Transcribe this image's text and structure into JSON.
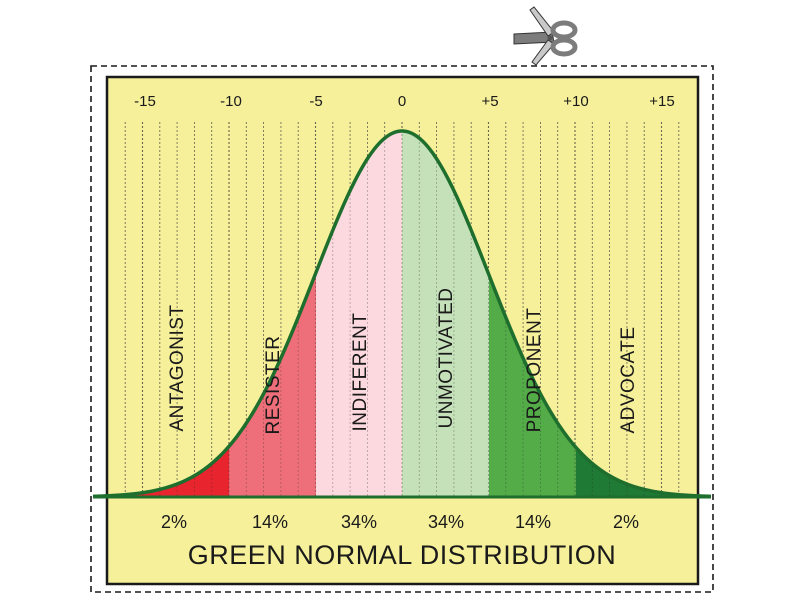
{
  "title": "GREEN NORMAL DISTRIBUTION",
  "ticks": [
    "-15",
    "-10",
    "-5",
    "0",
    "+5",
    "+10",
    "+15"
  ],
  "segments": [
    {
      "label": "ANTAGONIST",
      "percent": "2%",
      "color": "#e8252f"
    },
    {
      "label": "RESISTER",
      "percent": "14%",
      "color": "#ee6f79"
    },
    {
      "label": "INDIFERENT",
      "percent": "34%",
      "color": "#fbd9df"
    },
    {
      "label": "UNMOTIVATED",
      "percent": "34%",
      "color": "#c5e1b9"
    },
    {
      "label": "PROPONENT",
      "percent": "14%",
      "color": "#53ac48"
    },
    {
      "label": "ADVOCATE",
      "percent": "2%",
      "color": "#1f7a35"
    }
  ],
  "colors": {
    "background": "#f6f09a",
    "curve": "#1e6e2d",
    "frame": "#1a1a1a"
  },
  "icons": {
    "scissors": "scissors-icon"
  }
}
